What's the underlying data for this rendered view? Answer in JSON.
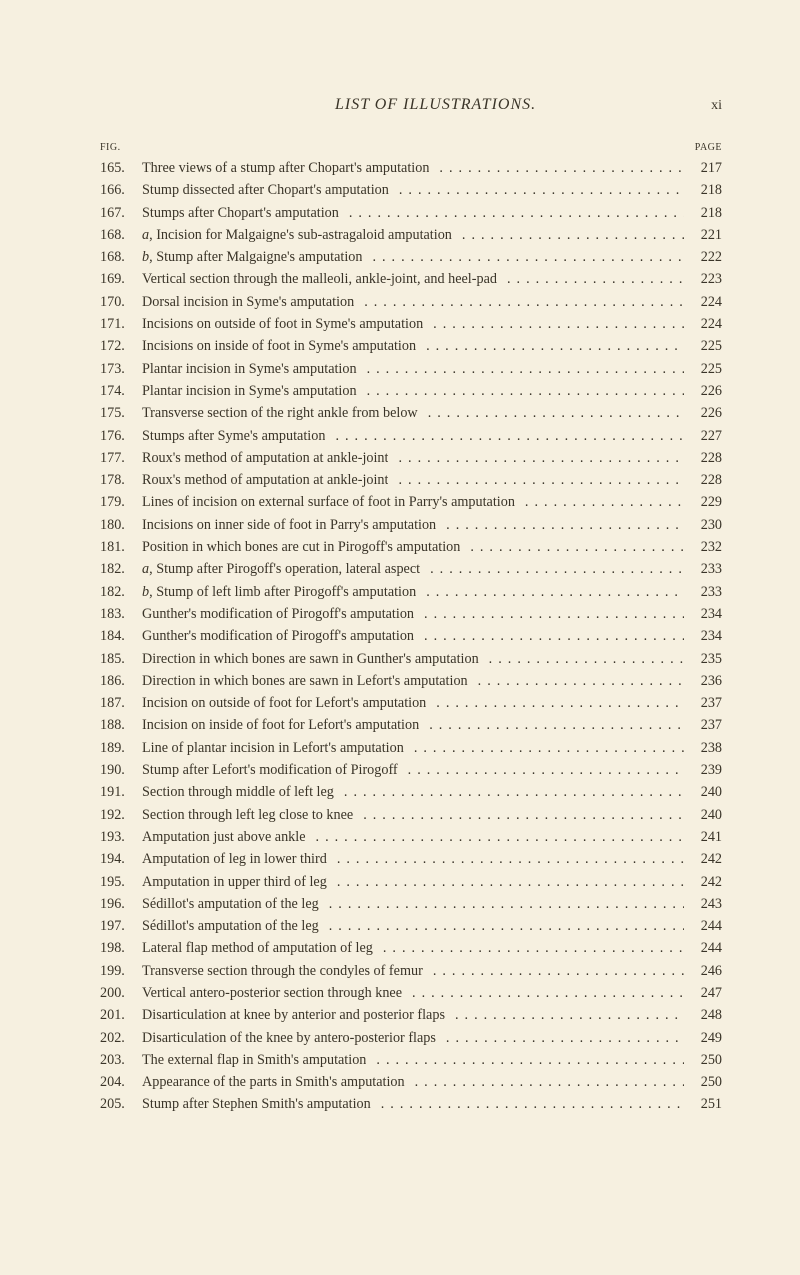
{
  "header": {
    "title": "LIST OF ILLUSTRATIONS.",
    "page_roman": "xi"
  },
  "column_labels": {
    "fig": "FIG.",
    "page": "PAGE"
  },
  "entries": [
    {
      "fig": "165.",
      "desc": "Three views of a stump after Chopart's amputation",
      "page": "217"
    },
    {
      "fig": "166.",
      "desc": "Stump dissected after Chopart's amputation",
      "page": "218"
    },
    {
      "fig": "167.",
      "desc": "Stumps after Chopart's amputation",
      "page": "218"
    },
    {
      "fig": "168.",
      "desc_html": "<span class='ital'>a</span>, Incision for Malgaigne's sub-astragaloid amputation",
      "page": "221"
    },
    {
      "fig": "168.",
      "desc_html": "<span class='ital'>b</span>, Stump after Malgaigne's amputation",
      "page": "222"
    },
    {
      "fig": "169.",
      "desc": "Vertical section through the malleoli, ankle-joint, and heel-pad",
      "page": "223"
    },
    {
      "fig": "170.",
      "desc": "Dorsal incision in Syme's amputation",
      "page": "224"
    },
    {
      "fig": "171.",
      "desc": "Incisions on outside of foot in Syme's amputation",
      "page": "224"
    },
    {
      "fig": "172.",
      "desc": "Incisions on inside of foot in Syme's amputation",
      "page": "225"
    },
    {
      "fig": "173.",
      "desc": "Plantar incision in Syme's amputation",
      "page": "225"
    },
    {
      "fig": "174.",
      "desc": "Plantar incision in Syme's amputation",
      "page": "226"
    },
    {
      "fig": "175.",
      "desc": "Transverse section of the right ankle from below",
      "page": "226"
    },
    {
      "fig": "176.",
      "desc": "Stumps after Syme's amputation",
      "page": "227"
    },
    {
      "fig": "177.",
      "desc": "Roux's method of amputation at ankle-joint",
      "page": "228"
    },
    {
      "fig": "178.",
      "desc": "Roux's method of amputation at ankle-joint",
      "page": "228"
    },
    {
      "fig": "179.",
      "desc": "Lines of incision on external surface of foot in Parry's amputation",
      "page": "229"
    },
    {
      "fig": "180.",
      "desc": "Incisions on inner side of foot in Parry's amputation",
      "page": "230"
    },
    {
      "fig": "181.",
      "desc": "Position in which bones are cut in Pirogoff's amputation",
      "page": "232"
    },
    {
      "fig": "182.",
      "desc_html": "<span class='ital'>a</span>, Stump after Pirogoff's operation, lateral aspect",
      "page": "233"
    },
    {
      "fig": "182.",
      "desc_html": "<span class='ital'>b</span>, Stump of left limb after Pirogoff's amputation",
      "page": "233"
    },
    {
      "fig": "183.",
      "desc": "Gunther's modification of Pirogoff's amputation",
      "page": "234"
    },
    {
      "fig": "184.",
      "desc": "Gunther's modification of Pirogoff's amputation",
      "page": "234"
    },
    {
      "fig": "185.",
      "desc": "Direction in which bones are sawn in Gunther's amputation",
      "page": "235"
    },
    {
      "fig": "186.",
      "desc": "Direction in which bones are sawn in Lefort's amputation",
      "page": "236"
    },
    {
      "fig": "187.",
      "desc": "Incision on outside of foot for Lefort's amputation",
      "page": "237"
    },
    {
      "fig": "188.",
      "desc": "Incision on inside of foot for Lefort's amputation",
      "page": "237"
    },
    {
      "fig": "189.",
      "desc": "Line of plantar incision in Lefort's amputation",
      "page": "238"
    },
    {
      "fig": "190.",
      "desc": "Stump after Lefort's modification of Pirogoff",
      "page": "239"
    },
    {
      "fig": "191.",
      "desc": "Section through middle of left leg",
      "page": "240"
    },
    {
      "fig": "192.",
      "desc": "Section through left leg close to knee",
      "page": "240"
    },
    {
      "fig": "193.",
      "desc": "Amputation just above ankle",
      "page": "241"
    },
    {
      "fig": "194.",
      "desc": "Amputation of leg in lower third",
      "page": "242"
    },
    {
      "fig": "195.",
      "desc": "Amputation in upper third of leg",
      "page": "242"
    },
    {
      "fig": "196.",
      "desc": "Sédillot's amputation of the leg",
      "page": "243"
    },
    {
      "fig": "197.",
      "desc": "Sédillot's amputation of the leg",
      "page": "244"
    },
    {
      "fig": "198.",
      "desc": "Lateral flap method of amputation of leg",
      "page": "244"
    },
    {
      "fig": "199.",
      "desc": "Transverse section through the condyles of femur",
      "page": "246"
    },
    {
      "fig": "200.",
      "desc": "Vertical antero-posterior section through knee",
      "page": "247"
    },
    {
      "fig": "201.",
      "desc": "Disarticulation at knee by anterior and posterior flaps",
      "page": "248"
    },
    {
      "fig": "202.",
      "desc": "Disarticulation of the knee by antero-posterior flaps",
      "page": "249"
    },
    {
      "fig": "203.",
      "desc": "The external flap in Smith's amputation",
      "page": "250"
    },
    {
      "fig": "204.",
      "desc": "Appearance of the parts in Smith's amputation",
      "page": "250"
    },
    {
      "fig": "205.",
      "desc": "Stump after Stephen Smith's amputation",
      "page": "251"
    }
  ],
  "colors": {
    "background": "#f6f0e0",
    "text": "#3a3428"
  }
}
